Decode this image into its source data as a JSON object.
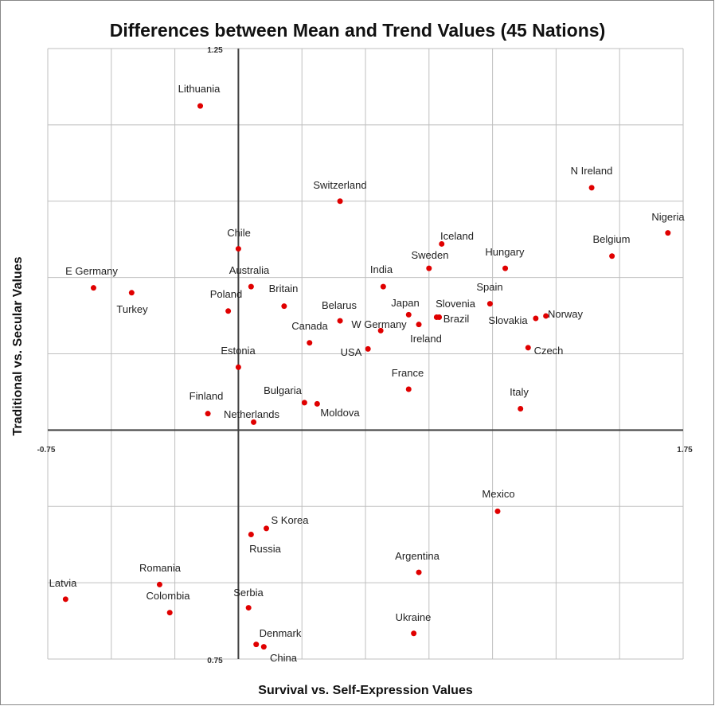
{
  "chart_data": {
    "type": "scatter",
    "title": "Differences between Mean and Trend Values (45 Nations)",
    "xlabel": "Survival vs. Self-Expression Values",
    "ylabel": "Traditional vs. Secular Values",
    "xlim": [
      -0.75,
      1.75
    ],
    "ylim": [
      0.75,
      1.25
    ],
    "x_tick_labels": [
      "-0.75",
      "1.75"
    ],
    "y_tick_labels": [
      "1.25",
      "0.75"
    ],
    "x_axis_crosses_at_y": 0.9375,
    "y_axis_crosses_at_x": 0,
    "grid": true,
    "marker_color": "#e00000",
    "points": [
      {
        "label": "Lithuania",
        "x": -0.15,
        "y": 1.203
      },
      {
        "label": "N Ireland",
        "x": 1.39,
        "y": 1.136
      },
      {
        "label": "Nigeria",
        "x": 1.69,
        "y": 1.099
      },
      {
        "label": "Switzerland",
        "x": 0.4,
        "y": 1.125
      },
      {
        "label": "Chile",
        "x": 0.0,
        "y": 1.086
      },
      {
        "label": "Iceland",
        "x": 0.8,
        "y": 1.09
      },
      {
        "label": "Belgium",
        "x": 1.47,
        "y": 1.08
      },
      {
        "label": "Sweden",
        "x": 0.75,
        "y": 1.07
      },
      {
        "label": "Hungary",
        "x": 1.05,
        "y": 1.07
      },
      {
        "label": "E Germany",
        "x": -0.57,
        "y": 1.054
      },
      {
        "label": "Turkey",
        "x": -0.42,
        "y": 1.05
      },
      {
        "label": "Australia",
        "x": 0.05,
        "y": 1.055
      },
      {
        "label": "India",
        "x": 0.57,
        "y": 1.055
      },
      {
        "label": "Poland",
        "x": -0.04,
        "y": 1.035
      },
      {
        "label": "Britain",
        "x": 0.18,
        "y": 1.039
      },
      {
        "label": "Spain",
        "x": 0.99,
        "y": 1.041
      },
      {
        "label": "Japan",
        "x": 0.67,
        "y": 1.032
      },
      {
        "label": "Slovenia",
        "x": 0.78,
        "y": 1.03
      },
      {
        "label": "Brazil",
        "x": 0.79,
        "y": 1.03
      },
      {
        "label": "Slovakia",
        "x": 1.17,
        "y": 1.029
      },
      {
        "label": "Norway",
        "x": 1.21,
        "y": 1.031
      },
      {
        "label": "Belarus",
        "x": 0.4,
        "y": 1.027
      },
      {
        "label": "Ireland",
        "x": 0.71,
        "y": 1.024
      },
      {
        "label": "W Germany",
        "x": 0.56,
        "y": 1.019
      },
      {
        "label": "Canada",
        "x": 0.28,
        "y": 1.009
      },
      {
        "label": "USA",
        "x": 0.51,
        "y": 1.004
      },
      {
        "label": "Czech",
        "x": 1.14,
        "y": 1.005
      },
      {
        "label": "Estonia",
        "x": 0.0,
        "y": 0.989
      },
      {
        "label": "France",
        "x": 0.67,
        "y": 0.971
      },
      {
        "label": "Italy",
        "x": 1.11,
        "y": 0.955
      },
      {
        "label": "Finland",
        "x": -0.12,
        "y": 0.951
      },
      {
        "label": "Bulgaria",
        "x": 0.26,
        "y": 0.96
      },
      {
        "label": "Moldova",
        "x": 0.31,
        "y": 0.959
      },
      {
        "label": "Netherlands",
        "x": 0.06,
        "y": 0.944
      },
      {
        "label": "Mexico",
        "x": 1.02,
        "y": 0.871
      },
      {
        "label": "S Korea",
        "x": 0.11,
        "y": 0.857
      },
      {
        "label": "Russia",
        "x": 0.05,
        "y": 0.852
      },
      {
        "label": "Argentina",
        "x": 0.71,
        "y": 0.821
      },
      {
        "label": "Latvia",
        "x": -0.68,
        "y": 0.799
      },
      {
        "label": "Romania",
        "x": -0.31,
        "y": 0.811
      },
      {
        "label": "Colombia",
        "x": -0.27,
        "y": 0.788
      },
      {
        "label": "Serbia",
        "x": 0.04,
        "y": 0.792
      },
      {
        "label": "Ukraine",
        "x": 0.69,
        "y": 0.771
      },
      {
        "label": "Denmark",
        "x": 0.07,
        "y": 0.762
      },
      {
        "label": "China",
        "x": 0.1,
        "y": 0.76
      }
    ]
  }
}
